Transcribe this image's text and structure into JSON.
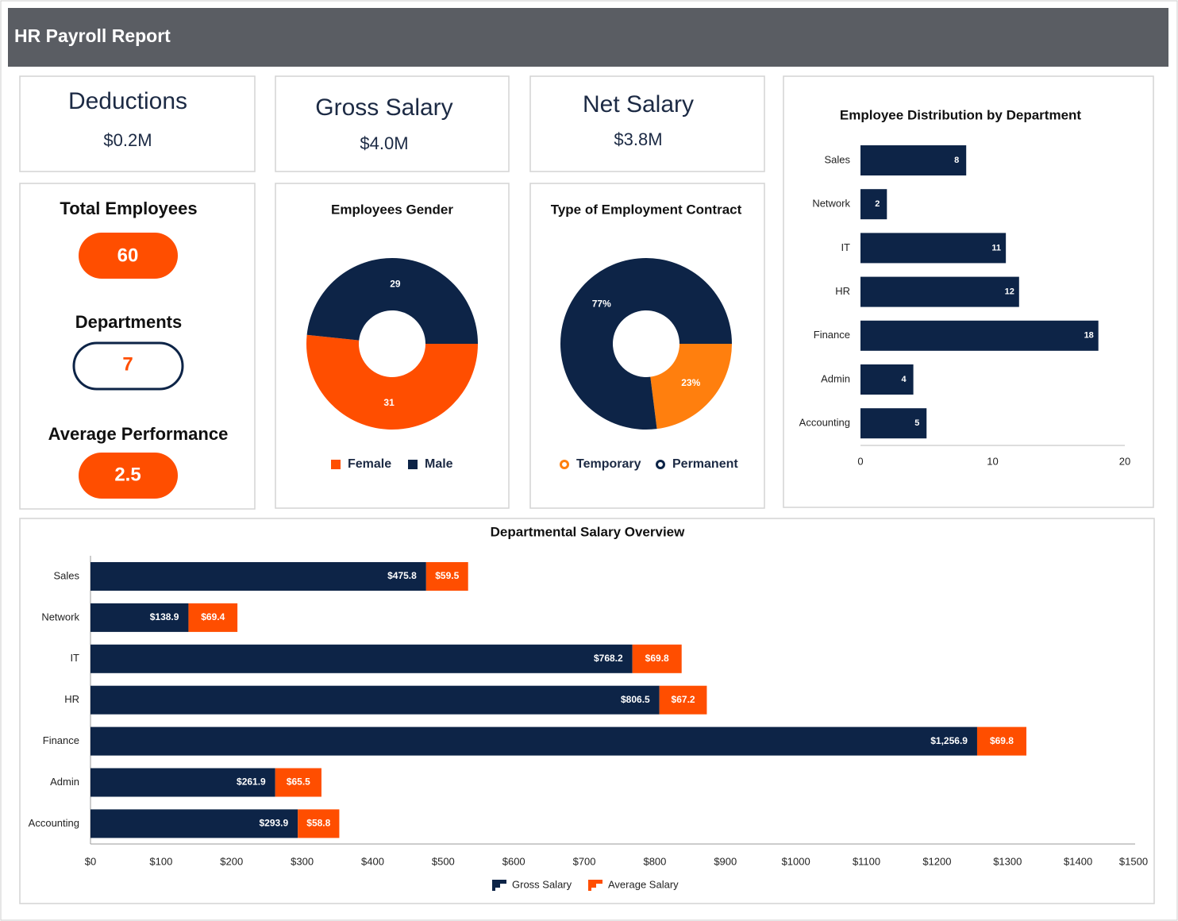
{
  "header": {
    "title": "HR Payroll Report"
  },
  "kpis": [
    {
      "label": "Deductions",
      "value": "$0.2M"
    },
    {
      "label": "Gross Salary",
      "value": "$4.0M"
    },
    {
      "label": "Net Salary",
      "value": "$3.8M"
    }
  ],
  "stats": [
    {
      "label": "Total Employees",
      "value": 60
    },
    {
      "label": "Departments",
      "value": 7
    },
    {
      "label": "Average Performance",
      "value": 2.5
    }
  ],
  "chart_data": [
    {
      "type": "donut",
      "title": "Employees Gender",
      "categories": [
        "Female",
        "Male"
      ],
      "values": [
        31,
        29
      ],
      "colors": [
        "#ff4e00",
        "#0d2447"
      ],
      "legend_marker": "square"
    },
    {
      "type": "donut",
      "title": "Type of Employment Contract",
      "categories": [
        "Temporary",
        "Permanent"
      ],
      "values": [
        23,
        77
      ],
      "value_labels": [
        "23%",
        "77%"
      ],
      "colors": [
        "#ff7f0e",
        "#0d2447"
      ],
      "legend_marker": "ring"
    },
    {
      "type": "hbar",
      "title": "Employee Distribution by Department",
      "categories": [
        "Sales",
        "Network",
        "IT",
        "HR",
        "Finance",
        "Admin",
        "Accounting"
      ],
      "values": [
        8,
        2,
        11,
        12,
        18,
        4,
        5
      ],
      "color": "#0d2447",
      "xlim": [
        0,
        20
      ],
      "xticks": [
        0,
        10,
        20
      ]
    },
    {
      "type": "stacked-hbar",
      "title": "Departmental Salary Overview",
      "categories": [
        "Sales",
        "Network",
        "IT",
        "HR",
        "Finance",
        "Admin",
        "Accounting"
      ],
      "series": [
        {
          "name": "Gross Salary",
          "color": "#0d2447",
          "values": [
            475.8,
            138.9,
            768.2,
            806.5,
            1256.9,
            261.9,
            293.9
          ],
          "value_labels": [
            "$475.8",
            "$138.9",
            "$768.2",
            "$806.5",
            "$1,256.9",
            "$261.9",
            "$293.9"
          ]
        },
        {
          "name": "Average Salary",
          "color": "#ff4e00",
          "values": [
            59.5,
            69.4,
            69.8,
            67.2,
            69.8,
            65.5,
            58.8
          ],
          "value_labels": [
            "$59.5",
            "$69.4",
            "$69.8",
            "$67.2",
            "$69.8",
            "$65.5",
            "$58.8"
          ]
        }
      ],
      "xlim": [
        0,
        1500
      ],
      "xticks": [
        {
          "value": 0,
          "label": "$0"
        },
        {
          "value": 100,
          "label": "$100"
        },
        {
          "value": 200,
          "label": "$200"
        },
        {
          "value": 300,
          "label": "$300"
        },
        {
          "value": 400,
          "label": "$400"
        },
        {
          "value": 500,
          "label": "$500"
        },
        {
          "value": 600,
          "label": "$600"
        },
        {
          "value": 700,
          "label": "$700"
        },
        {
          "value": 800,
          "label": "$800"
        },
        {
          "value": 900,
          "label": "$900"
        },
        {
          "value": 1000,
          "label": "$1000"
        },
        {
          "value": 1100,
          "label": "$1100"
        },
        {
          "value": 1200,
          "label": "$1200"
        },
        {
          "value": 1300,
          "label": "$1300"
        },
        {
          "value": 1400,
          "label": "$1400"
        },
        {
          "value": 1500,
          "label": "$1500"
        }
      ]
    }
  ]
}
